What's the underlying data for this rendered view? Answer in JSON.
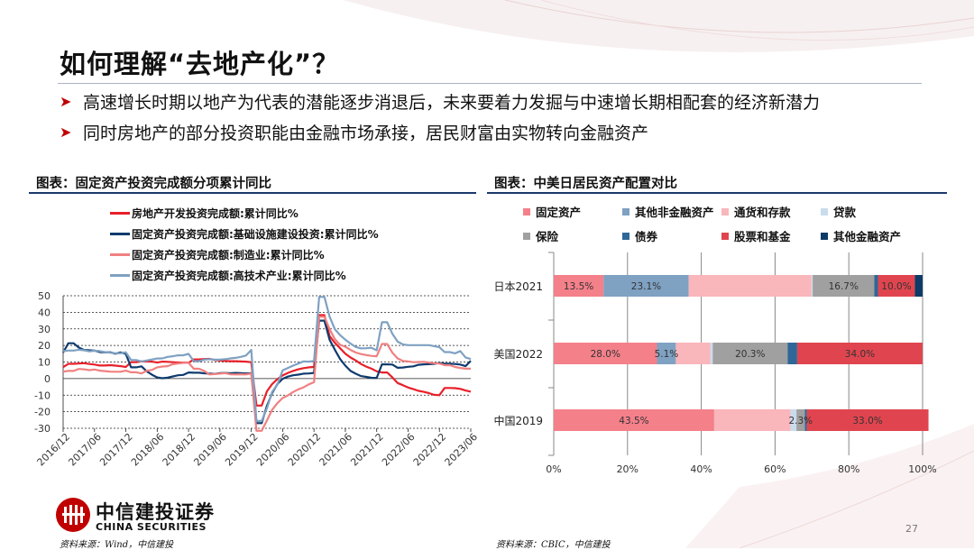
{
  "title": "如何理解“去地产化”？",
  "bullets": [
    "高速增长时期以地产为代表的潜能逐步消退后，未来要着力发掘与中速增长期相配套的经济新潜力",
    "同时房地产的部分投资职能由金融市场承接，居民财富由实物转向金融资产"
  ],
  "page_number": "27",
  "logo": {
    "cn": "中信建投证券",
    "en": "CHINA SECURITIES"
  },
  "sources": {
    "left": "资料来源：Wind，中信建投",
    "right": "资料来源：CBIC，中信建投"
  },
  "colors": {
    "accent": "#c00000",
    "rule": "#1a3a6b"
  },
  "chart_data": [
    {
      "caption": "图表：固定资产投资完成额分项累计同比",
      "type": "line",
      "x": [
        "2016/12",
        "2017/01",
        "2017/02",
        "2017/03",
        "2017/04",
        "2017/05",
        "2017/06",
        "2017/07",
        "2017/08",
        "2017/09",
        "2017/10",
        "2017/11",
        "2017/12",
        "2018/01",
        "2018/02",
        "2018/03",
        "2018/04",
        "2018/05",
        "2018/06",
        "2018/07",
        "2018/08",
        "2018/09",
        "2018/10",
        "2018/11",
        "2018/12",
        "2019/01",
        "2019/02",
        "2019/03",
        "2019/04",
        "2019/05",
        "2019/06",
        "2019/07",
        "2019/08",
        "2019/09",
        "2019/10",
        "2019/11",
        "2019/12",
        "2020/01",
        "2020/02",
        "2020/03",
        "2020/04",
        "2020/05",
        "2020/06",
        "2020/07",
        "2020/08",
        "2020/09",
        "2020/10",
        "2020/11",
        "2020/12",
        "2021/01",
        "2021/02",
        "2021/03",
        "2021/04",
        "2021/05",
        "2021/06",
        "2021/07",
        "2021/08",
        "2021/09",
        "2021/10",
        "2021/11",
        "2021/12",
        "2022/01",
        "2022/02",
        "2022/03",
        "2022/04",
        "2022/05",
        "2022/06",
        "2022/07",
        "2022/08",
        "2022/09",
        "2022/10",
        "2022/11",
        "2022/12",
        "2023/01",
        "2023/02",
        "2023/03",
        "2023/04",
        "2023/05",
        "2023/06"
      ],
      "tick_labels": [
        "2016/12",
        "2017/06",
        "2017/12",
        "2018/06",
        "2018/12",
        "2019/06",
        "2019/12",
        "2020/06",
        "2020/12",
        "2021/06",
        "2021/12",
        "2022/06",
        "2022/12",
        "2023/06"
      ],
      "ylim": [
        -30,
        50
      ],
      "yticks": [
        50,
        40,
        30,
        20,
        10,
        0,
        -10,
        -20,
        -30
      ],
      "series": [
        {
          "name": "房地产开发投资完成额:累计同比%",
          "color": "#e8202a",
          "values": [
            6.9,
            8.9,
            8.9,
            9.1,
            9.3,
            8.8,
            8.5,
            7.9,
            7.9,
            8.1,
            7.8,
            7.5,
            7.0,
            9.9,
            9.9,
            10.4,
            10.3,
            10.2,
            9.7,
            10.2,
            10.1,
            9.9,
            9.7,
            9.7,
            9.5,
            11.6,
            11.6,
            11.8,
            11.9,
            11.2,
            10.9,
            10.6,
            10.5,
            10.5,
            10.3,
            10.2,
            9.9,
            -16.3,
            -16.3,
            -7.7,
            -3.3,
            -0.3,
            1.9,
            3.4,
            4.6,
            5.6,
            6.3,
            6.8,
            7.0,
            38.3,
            38.3,
            25.6,
            21.6,
            18.3,
            15.0,
            12.7,
            10.9,
            8.8,
            7.2,
            6.0,
            4.4,
            3.7,
            3.7,
            0.7,
            -2.7,
            -4.0,
            -5.4,
            -6.4,
            -7.4,
            -8.0,
            -8.8,
            -9.8,
            -10.0,
            -5.7,
            -5.7,
            -5.8,
            -6.2,
            -7.2,
            -7.9
          ]
        },
        {
          "name": "固定资产投资完成额:基础设施建设投资:累计同比%",
          "color": "#0f3b6e",
          "values": [
            15.7,
            21.3,
            21.3,
            18.7,
            17.3,
            17.1,
            16.9,
            16.0,
            15.8,
            15.9,
            15.0,
            15.8,
            14.9,
            6.8,
            6.8,
            7.4,
            4.4,
            2.3,
            0.7,
            0.2,
            0.6,
            1.3,
            2.0,
            2.2,
            3.7,
            3.5,
            3.5,
            3.2,
            3.0,
            2.8,
            3.3,
            3.4,
            3.2,
            3.4,
            3.3,
            3.1,
            3.3,
            -26.9,
            -26.9,
            -16.4,
            -8.8,
            -3.3,
            -0.1,
            1.2,
            2.0,
            2.4,
            3.0,
            3.1,
            3.4,
            35.0,
            35.0,
            23.4,
            17.4,
            11.8,
            7.8,
            4.6,
            2.9,
            1.5,
            1.0,
            0.5,
            0.4,
            8.6,
            8.6,
            8.5,
            6.5,
            6.7,
            7.1,
            7.4,
            8.3,
            8.6,
            8.7,
            8.9,
            9.4,
            9.0,
            9.0,
            8.8,
            8.5,
            7.5,
            10.7
          ]
        },
        {
          "name": "固定资产投资完成额:制造业:累计同比%",
          "color": "#f08080",
          "values": [
            4.2,
            4.6,
            4.6,
            5.8,
            5.6,
            5.1,
            5.5,
            4.8,
            4.5,
            4.2,
            4.1,
            4.1,
            4.8,
            3.8,
            3.8,
            3.1,
            4.8,
            5.2,
            6.8,
            7.3,
            7.5,
            8.7,
            9.1,
            9.5,
            9.5,
            5.9,
            5.9,
            4.6,
            2.5,
            2.7,
            3.0,
            3.3,
            2.6,
            2.5,
            2.6,
            2.5,
            3.1,
            -31.5,
            -31.5,
            -25.2,
            -18.8,
            -14.8,
            -11.7,
            -10.2,
            -8.1,
            -6.5,
            -5.3,
            -3.5,
            -2.2,
            37.3,
            37.3,
            29.8,
            23.8,
            20.4,
            19.2,
            17.3,
            15.7,
            14.8,
            14.2,
            13.7,
            13.5,
            20.9,
            20.9,
            15.6,
            12.2,
            10.6,
            10.4,
            9.9,
            10.0,
            10.1,
            9.7,
            9.3,
            9.1,
            8.1,
            8.1,
            7.0,
            6.4,
            6.0,
            6.0
          ]
        },
        {
          "name": "固定资产投资完成额:高技术产业:累计同比%",
          "color": "#7fa1c2",
          "values": [
            16.6,
            16.9,
            16.9,
            17.4,
            17.1,
            16.4,
            16.8,
            16.6,
            16.0,
            15.6,
            15.3,
            15.3,
            15.9,
            11.2,
            11.2,
            10.3,
            10.9,
            11.5,
            12.1,
            12.2,
            13.1,
            13.5,
            14.0,
            14.1,
            14.9,
            10.5,
            10.5,
            11.4,
            11.7,
            11.4,
            11.4,
            11.7,
            12.2,
            12.5,
            13.1,
            13.9,
            17.3,
            -25.6,
            -25.6,
            -17.9,
            -8.0,
            -3.6,
            5.0,
            6.4,
            7.8,
            9.1,
            10.4,
            10.2,
            10.6,
            49.3,
            49.3,
            37.3,
            29.8,
            26.2,
            23.5,
            21.1,
            19.1,
            18.2,
            18.3,
            18.6,
            17.1,
            34.0,
            34.0,
            27.0,
            22.3,
            20.6,
            20.2,
            20.2,
            20.2,
            20.2,
            20.2,
            19.6,
            18.9,
            16.0,
            16.0,
            15.2,
            16.6,
            12.8,
            11.8
          ]
        }
      ]
    },
    {
      "caption": "图表：中美日居民资产配置对比",
      "type": "bar",
      "orientation": "horizontal-stacked",
      "categories": [
        "日本2021",
        "美国2022",
        "中国2019"
      ],
      "xlim": [
        0,
        100
      ],
      "xticks": [
        "0%",
        "20%",
        "40%",
        "60%",
        "80%",
        "100%"
      ],
      "legend": [
        "固定资产",
        "其他非金融资产",
        "通货和存款",
        "贷款",
        "保险",
        "债券",
        "股票和基金",
        "其他金融资产"
      ],
      "series": [
        {
          "name": "固定资产",
          "color": "#f4808a",
          "values": [
            13.5,
            28.0,
            43.5
          ]
        },
        {
          "name": "其他非金融资产",
          "color": "#7fa1c2",
          "values": [
            23.1,
            5.1,
            0
          ]
        },
        {
          "name": "通货和存款",
          "color": "#f9b6bb",
          "values": [
            33.3,
            9.4,
            20.7
          ]
        },
        {
          "name": "贷款",
          "color": "#c9dced",
          "values": [
            0.3,
            0.6,
            1.6
          ]
        },
        {
          "name": "保险",
          "color": "#a0a0a0",
          "values": [
            16.7,
            20.3,
            2.3
          ]
        },
        {
          "name": "债券",
          "color": "#2f6798",
          "values": [
            1.0,
            2.6,
            0.5
          ]
        },
        {
          "name": "股票和基金",
          "color": "#e0454f",
          "values": [
            10.0,
            34.0,
            33.0
          ]
        },
        {
          "name": "其他金融资产",
          "color": "#0e3a67",
          "values": [
            2.1,
            0,
            0
          ]
        }
      ],
      "data_labels": [
        {
          "category": 0,
          "series": 0,
          "text": "13.5%"
        },
        {
          "category": 0,
          "series": 1,
          "text": "23.1%"
        },
        {
          "category": 0,
          "series": 4,
          "text": "16.7%"
        },
        {
          "category": 0,
          "series": 6,
          "text": "10.0%"
        },
        {
          "category": 1,
          "series": 0,
          "text": "28.0%"
        },
        {
          "category": 1,
          "series": 1,
          "text": "5.1%"
        },
        {
          "category": 1,
          "series": 4,
          "text": "20.3%"
        },
        {
          "category": 1,
          "series": 6,
          "text": "34.0%"
        },
        {
          "category": 2,
          "series": 0,
          "text": "43.5%"
        },
        {
          "category": 2,
          "series": 4,
          "text": "2.3%"
        },
        {
          "category": 2,
          "series": 6,
          "text": "33.0%"
        }
      ]
    }
  ]
}
